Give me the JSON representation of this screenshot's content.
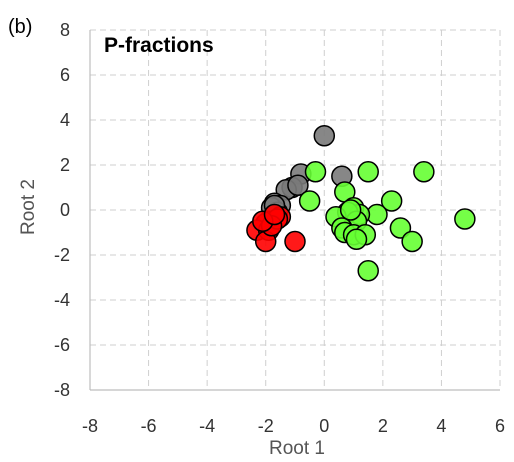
{
  "panel_label": "(b)",
  "chart_data": {
    "type": "scatter",
    "title": "P-fractions",
    "xlabel": "Root 1",
    "ylabel": "Root 2",
    "xlim": [
      -8,
      6
    ],
    "ylim": [
      -8,
      8
    ],
    "xticks": [
      -8,
      -6,
      -4,
      -2,
      0,
      2,
      4,
      6
    ],
    "yticks": [
      -8,
      -6,
      -4,
      -2,
      0,
      2,
      4,
      6,
      8
    ],
    "grid": true,
    "series": [
      {
        "color": "#7a7a7a",
        "points": [
          [
            0.0,
            3.3
          ],
          [
            0.6,
            1.5
          ],
          [
            -0.8,
            1.6
          ],
          [
            -1.1,
            1.0
          ],
          [
            -1.3,
            0.9
          ],
          [
            -0.9,
            1.1
          ],
          [
            -1.7,
            0.3
          ],
          [
            -1.5,
            0.2
          ],
          [
            -1.8,
            0.1
          ],
          [
            -1.6,
            -0.1
          ],
          [
            -1.7,
            0.2
          ]
        ]
      },
      {
        "color": "#ff0000",
        "points": [
          [
            -1.9,
            -0.5
          ],
          [
            -2.0,
            -0.6
          ],
          [
            -2.3,
            -0.9
          ],
          [
            -1.9,
            -0.9
          ],
          [
            -2.0,
            -1.4
          ],
          [
            -1.0,
            -1.4
          ],
          [
            -1.5,
            -0.3
          ],
          [
            -1.6,
            -0.4
          ],
          [
            -1.8,
            -0.7
          ],
          [
            -2.1,
            -0.5
          ],
          [
            -1.7,
            -0.2
          ]
        ]
      },
      {
        "color": "#66ff33",
        "points": [
          [
            -0.3,
            1.7
          ],
          [
            0.7,
            0.8
          ],
          [
            -0.5,
            0.4
          ],
          [
            1.5,
            1.7
          ],
          [
            3.4,
            1.7
          ],
          [
            2.3,
            0.4
          ],
          [
            1.0,
            0.1
          ],
          [
            1.8,
            -0.2
          ],
          [
            1.2,
            -0.2
          ],
          [
            0.8,
            -0.1
          ],
          [
            0.4,
            -0.3
          ],
          [
            1.1,
            -0.5
          ],
          [
            0.6,
            -0.8
          ],
          [
            0.7,
            -1.0
          ],
          [
            1.0,
            -1.1
          ],
          [
            1.4,
            -1.1
          ],
          [
            1.1,
            -1.3
          ],
          [
            2.6,
            -0.8
          ],
          [
            3.0,
            -1.4
          ],
          [
            4.8,
            -0.4
          ],
          [
            1.5,
            -2.7
          ],
          [
            0.9,
            0.0
          ]
        ]
      }
    ]
  }
}
